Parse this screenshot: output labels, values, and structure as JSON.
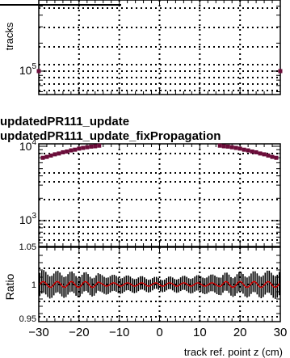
{
  "chart_data": [
    {
      "panel": "top",
      "type": "scatter",
      "ylabel": "tracks",
      "yscale": "log",
      "xlim": [
        -30,
        30
      ],
      "yticks": [
        {
          "value": 100000,
          "label": "10",
          "exp": "5"
        }
      ],
      "grid": true,
      "series": [
        {
          "color": "#6b0d3a",
          "x": [
            -30,
            30
          ],
          "y": [
            100000,
            100000
          ]
        }
      ]
    },
    {
      "panel": "middle",
      "type": "scatter",
      "yscale": "log",
      "xlim": [
        -30,
        30
      ],
      "yticks": [
        {
          "value": 10000,
          "label": "10",
          "exp": "4"
        },
        {
          "value": 1000,
          "label": "10",
          "exp": "3"
        }
      ],
      "grid": true,
      "series": [
        {
          "color": "#6b0d3a",
          "x": [
            -29,
            -28,
            -27,
            -26,
            -25,
            -24,
            -23,
            -22,
            -21,
            -20,
            -19,
            -18,
            -17,
            -16,
            -15,
            15,
            16,
            17,
            18,
            19,
            20,
            21,
            22,
            23,
            24,
            25,
            26,
            27,
            28,
            29
          ],
          "y": [
            7000,
            7200,
            7500,
            7800,
            8000,
            8300,
            8500,
            8800,
            9000,
            9300,
            9500,
            9700,
            9900,
            10000,
            10200,
            10200,
            10000,
            9900,
            9700,
            9500,
            9300,
            9000,
            8800,
            8500,
            8300,
            8000,
            7800,
            7500,
            7200,
            7000
          ]
        }
      ]
    },
    {
      "panel": "ratio",
      "type": "scatter",
      "ylabel": "Ratio",
      "xlabel": "track ref. point z (cm)",
      "xlim": [
        -30,
        30
      ],
      "ylim": [
        0.95,
        1.05
      ],
      "xticks": [
        "−30",
        "−20",
        "−10",
        "0",
        "10",
        "20",
        "30"
      ],
      "yticks": [
        "0.95",
        "1",
        "1.05"
      ],
      "grid": true,
      "series": [
        {
          "name": "ratio",
          "color": "#000000",
          "line_color": "#cc0000",
          "y_center": 1.0,
          "err_half": 0.008
        }
      ]
    }
  ],
  "legend": {
    "line1": "updatedPR111_update",
    "line2": "updatedPR111_update_fixPropagation"
  }
}
